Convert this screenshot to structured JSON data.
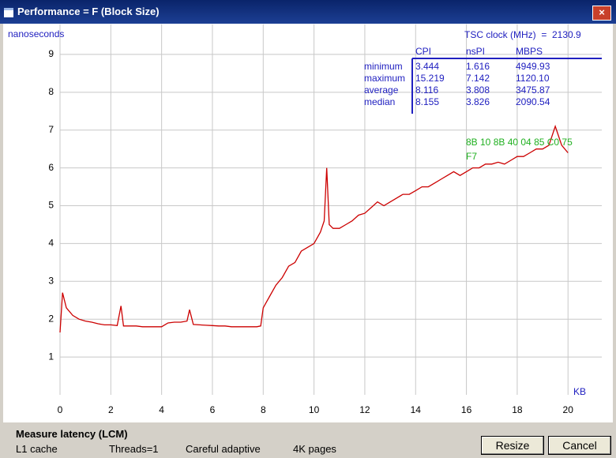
{
  "window": {
    "title": "Performance = F (Block Size)"
  },
  "chart_data": {
    "type": "line",
    "y_label": "nanoseconds",
    "x_label": "KB",
    "xlim": [
      0,
      21.33
    ],
    "ylim": [
      0,
      9.8
    ],
    "xticks": [
      0,
      2,
      4,
      6,
      8,
      10,
      12,
      14,
      16,
      18,
      20
    ],
    "yticks": [
      1,
      2,
      3,
      4,
      5,
      6,
      7,
      8,
      9
    ],
    "grid": true,
    "x": [
      0,
      0.1,
      0.25,
      0.5,
      0.75,
      1,
      1.25,
      1.5,
      1.75,
      2,
      2.25,
      2.4,
      2.5,
      2.75,
      3,
      3.25,
      3.5,
      3.75,
      4,
      4.25,
      4.5,
      4.75,
      5,
      5.1,
      5.25,
      5.5,
      5.75,
      6,
      6.25,
      6.5,
      6.75,
      7,
      7.25,
      7.5,
      7.75,
      7.9,
      8,
      8.25,
      8.5,
      8.75,
      9,
      9.25,
      9.5,
      9.75,
      10,
      10.25,
      10.4,
      10.5,
      10.6,
      10.75,
      11,
      11.25,
      11.5,
      11.75,
      12,
      12.25,
      12.5,
      12.75,
      13,
      13.25,
      13.5,
      13.75,
      14,
      14.25,
      14.5,
      14.75,
      15,
      15.25,
      15.5,
      15.75,
      16,
      16.25,
      16.5,
      16.75,
      17,
      17.25,
      17.5,
      17.75,
      18,
      18.25,
      18.5,
      18.75,
      19,
      19.25,
      19.5,
      19.75,
      20
    ],
    "series": [
      {
        "color": "#cc0000",
        "values": [
          1.65,
          2.7,
          2.3,
          2.1,
          2.0,
          1.95,
          1.92,
          1.88,
          1.85,
          1.85,
          1.83,
          2.35,
          1.82,
          1.82,
          1.82,
          1.8,
          1.8,
          1.8,
          1.8,
          1.9,
          1.92,
          1.92,
          1.95,
          2.25,
          1.86,
          1.85,
          1.84,
          1.83,
          1.82,
          1.82,
          1.8,
          1.8,
          1.8,
          1.8,
          1.8,
          1.82,
          2.3,
          2.6,
          2.9,
          3.1,
          3.4,
          3.5,
          3.8,
          3.9,
          4.0,
          4.3,
          4.6,
          6.0,
          4.5,
          4.4,
          4.4,
          4.5,
          4.6,
          4.75,
          4.8,
          4.95,
          5.1,
          5.0,
          5.1,
          5.2,
          5.3,
          5.3,
          5.4,
          5.5,
          5.5,
          5.6,
          5.7,
          5.8,
          5.9,
          5.8,
          5.9,
          6.0,
          6.0,
          6.1,
          6.1,
          6.15,
          6.1,
          6.2,
          6.3,
          6.3,
          6.4,
          6.5,
          6.5,
          6.6,
          7.1,
          6.6,
          6.4
        ]
      }
    ],
    "annotation": [
      "8B 10 8B 40 04 85 C0 75",
      "F7"
    ]
  },
  "stats": {
    "clock": "TSC clock (MHz)  =  2130.9",
    "columns": [
      "CPI",
      "nsPI",
      "MBPS"
    ],
    "rows": [
      [
        "minimum",
        "3.444",
        "1.616",
        "4949.93"
      ],
      [
        "maximum",
        "15.219",
        "7.142",
        "1120.10"
      ],
      [
        "average",
        "8.116",
        "3.808",
        "3475.87"
      ],
      [
        "median",
        "8.155",
        "3.826",
        "2090.54"
      ]
    ]
  },
  "status": {
    "test": "Measure latency (LCM)",
    "cache": "L1 cache",
    "threads": "Threads=1",
    "mode": "Careful adaptive",
    "pages": "4K pages"
  },
  "buttons": [
    "Resize",
    "Cancel"
  ]
}
